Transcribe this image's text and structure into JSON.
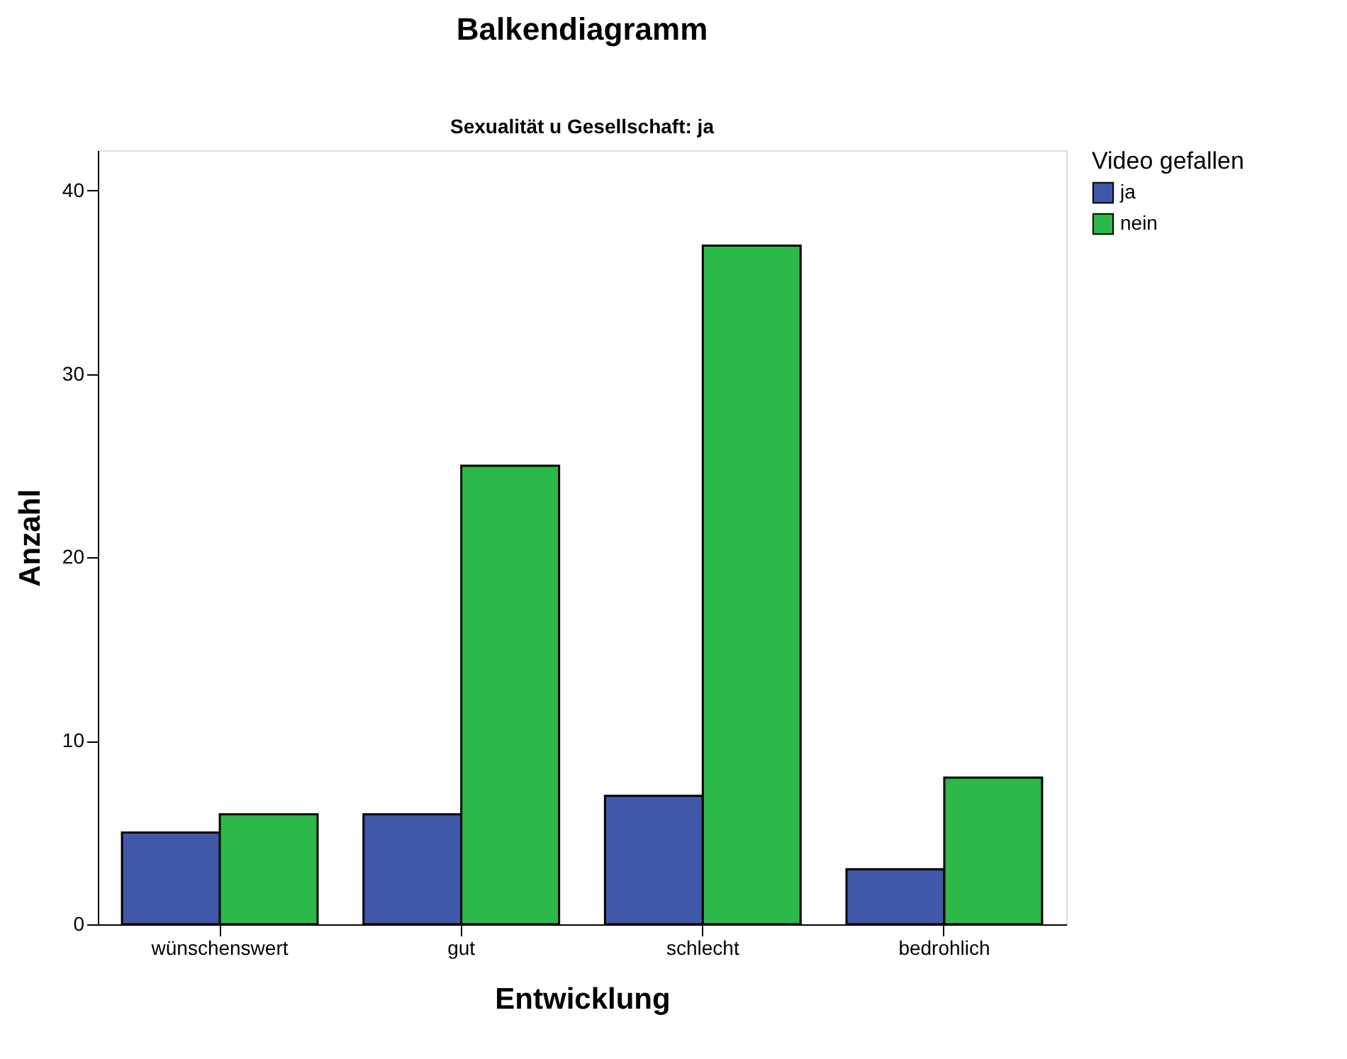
{
  "chart_data": {
    "type": "bar",
    "title": "Balkendiagramm",
    "subtitle": "Sexualität u Gesellschaft: ja",
    "xlabel": "Entwicklung",
    "ylabel": "Anzahl",
    "legend_title": "Video gefallen",
    "categories": [
      "wünschenswert",
      "gut",
      "schlecht",
      "bedrohlich"
    ],
    "series": [
      {
        "name": "ja",
        "color": "#3f58a8",
        "values": [
          5,
          6,
          7,
          3
        ]
      },
      {
        "name": "nein",
        "color": "#2db84a",
        "values": [
          6,
          25,
          37,
          8
        ]
      }
    ],
    "ylim": [
      0,
      42.2
    ],
    "yticks": [
      0,
      10,
      20,
      30,
      40
    ],
    "grid": false,
    "legend": "top right"
  }
}
